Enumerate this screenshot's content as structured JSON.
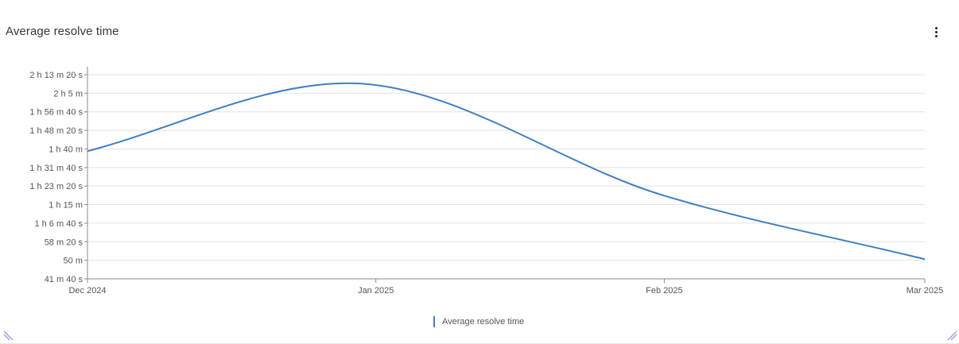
{
  "panel": {
    "title": "Average resolve time",
    "menu_icon": "kebab-menu-icon"
  },
  "colors": {
    "series": "#3f7fbf",
    "grid": "#e4e4e4",
    "axis": "#8a8a8a",
    "corner": "#9a9ad6"
  },
  "chart_data": {
    "type": "line",
    "title": "",
    "xlabel": "",
    "ylabel": "",
    "x_ticks": [
      "Dec 2024",
      "Jan 2025",
      "Feb 2025",
      "Mar 2025"
    ],
    "y_ticks": [
      "41 m 40 s",
      "50 m",
      "58 m 20 s",
      "1 h 6 m 40 s",
      "1 h 15 m",
      "1 h 23 m 20 s",
      "1 h 31 m 40 s",
      "1 h 40 m",
      "1 h 48 m 20 s",
      "1 h 56 m 40 s",
      "2 h 5 m",
      "2 h 13 m 20 s"
    ],
    "ylim_minutes": [
      41.6667,
      133.3333
    ],
    "xlim": [
      "2024-12-01",
      "2025-03-01"
    ],
    "grid": true,
    "legend_position": "bottom-center",
    "smooth": true,
    "series": [
      {
        "name": "Average resolve time",
        "points": [
          {
            "x": "2024-12-01",
            "y_minutes": 99
          },
          {
            "x": "2024-12-29",
            "y_minutes": 129.5
          },
          {
            "x": "2025-02-01",
            "y_minutes": 79
          },
          {
            "x": "2025-03-01",
            "y_minutes": 50.5
          }
        ]
      }
    ]
  },
  "legend": {
    "label": "Average resolve time"
  }
}
